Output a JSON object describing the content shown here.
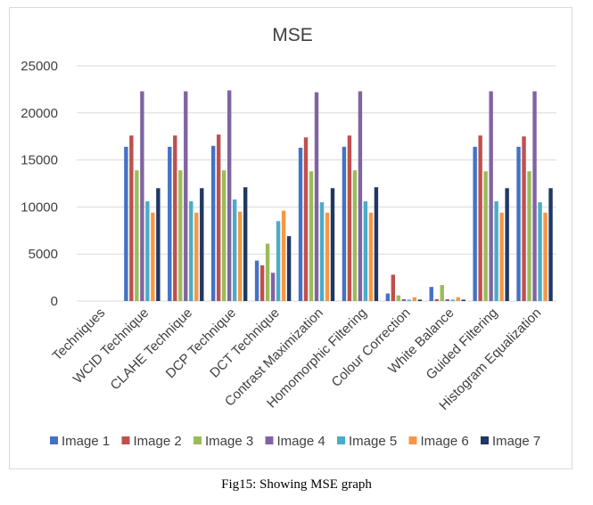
{
  "chart_data": {
    "type": "bar",
    "title": "MSE",
    "categories": [
      "Techniques",
      "WCID Technique",
      "CLAHE Technique",
      "DCP Technique",
      "DCT Technique",
      "Contrast Maximization",
      "Homomorphic Filtering",
      "Colour Correction",
      "White Balance",
      "Guided Filtering",
      "Histogram Equalization"
    ],
    "series": [
      {
        "name": "Image 1",
        "color": "#4472C4",
        "values": [
          0,
          16400,
          16400,
          16500,
          4300,
          16300,
          16400,
          800,
          1500,
          16400,
          16400
        ]
      },
      {
        "name": "Image 2",
        "color": "#C0504D",
        "values": [
          0,
          17600,
          17600,
          17700,
          3800,
          17400,
          17600,
          2800,
          200,
          17600,
          17500
        ]
      },
      {
        "name": "Image 3",
        "color": "#9BBB59",
        "values": [
          0,
          13900,
          13900,
          13900,
          6100,
          13800,
          13900,
          600,
          1700,
          13800,
          13800
        ]
      },
      {
        "name": "Image 4",
        "color": "#8064A2",
        "values": [
          0,
          22300,
          22300,
          22400,
          3000,
          22200,
          22300,
          200,
          200,
          22300,
          22300
        ]
      },
      {
        "name": "Image 5",
        "color": "#4BACC6",
        "values": [
          0,
          10600,
          10600,
          10800,
          8500,
          10500,
          10600,
          150,
          150,
          10600,
          10500
        ]
      },
      {
        "name": "Image 6",
        "color": "#F79646",
        "values": [
          0,
          9400,
          9400,
          9500,
          9600,
          9400,
          9400,
          400,
          400,
          9400,
          9400
        ]
      },
      {
        "name": "Image 7",
        "color": "#1F3864",
        "values": [
          0,
          12000,
          12000,
          12100,
          6900,
          12000,
          12100,
          150,
          150,
          12000,
          12000
        ]
      }
    ],
    "ylim": [
      0,
      25000
    ],
    "yticks": [
      "0",
      "5000",
      "10000",
      "15000",
      "20000",
      "25000"
    ],
    "grid": true,
    "legend_position": "bottom"
  },
  "caption": "Fig15: Showing MSE graph"
}
